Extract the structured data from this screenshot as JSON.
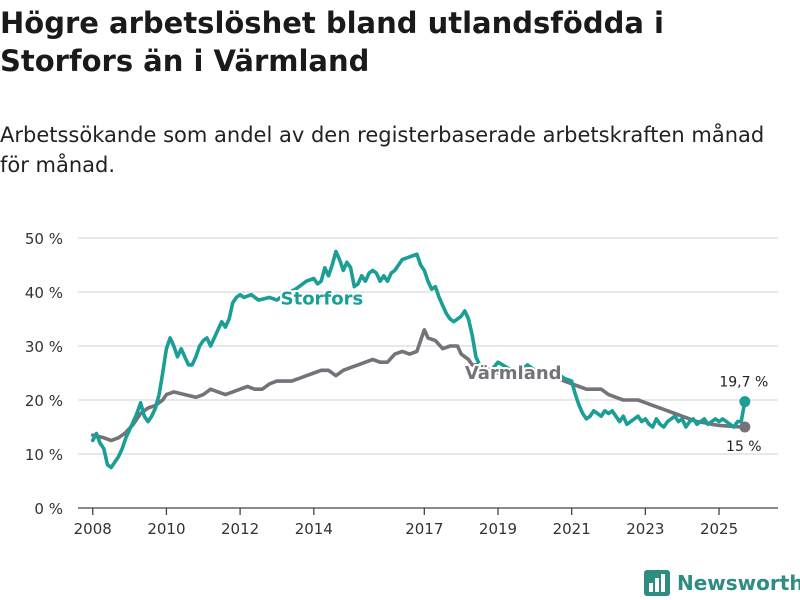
{
  "title": "Högre arbetslöshet bland utlandsfödda i Storfors än i Värmland",
  "subtitle": "Arbetssökande som andel av den registerbaserade arbetskraften månad för månad.",
  "logo": {
    "text": "Newsworthy",
    "icon": "bar-chart-icon"
  },
  "colors": {
    "storfors": "#1a9e95",
    "varmland": "#75727a",
    "grid": "#d9d9d9",
    "axis": "#444444",
    "brand": "#2e8c82"
  },
  "chart_data": {
    "type": "line",
    "title": "Högre arbetslöshet bland utlandsfödda i Storfors än i Värmland",
    "ylim": [
      0,
      50
    ],
    "xlim": [
      2007.6,
      2026.6
    ],
    "yticks": [
      0,
      10,
      20,
      30,
      40,
      50
    ],
    "ytick_labels": [
      "0 %",
      "10 %",
      "20 %",
      "30 %",
      "40 %",
      "50 %"
    ],
    "xticks": [
      2008,
      2010,
      2012,
      2014,
      2017,
      2019,
      2021,
      2023,
      2025
    ],
    "xtick_labels": [
      "2008",
      "2010",
      "2012",
      "2014",
      "2017",
      "2019",
      "2021",
      "2023",
      "2025"
    ],
    "series": [
      {
        "name": "Storfors",
        "label": "Storfors",
        "end_label": "19,7 %",
        "points": [
          [
            2008.0,
            12.5
          ],
          [
            2008.1,
            13.8
          ],
          [
            2008.2,
            12.0
          ],
          [
            2008.3,
            11.0
          ],
          [
            2008.4,
            8.0
          ],
          [
            2008.5,
            7.5
          ],
          [
            2008.6,
            8.5
          ],
          [
            2008.7,
            9.5
          ],
          [
            2008.8,
            11.0
          ],
          [
            2008.9,
            13.0
          ],
          [
            2009.0,
            14.5
          ],
          [
            2009.1,
            16.0
          ],
          [
            2009.2,
            17.5
          ],
          [
            2009.3,
            19.5
          ],
          [
            2009.4,
            17.0
          ],
          [
            2009.5,
            16.0
          ],
          [
            2009.6,
            17.0
          ],
          [
            2009.7,
            18.5
          ],
          [
            2009.8,
            21.0
          ],
          [
            2009.9,
            25.0
          ],
          [
            2010.0,
            29.5
          ],
          [
            2010.1,
            31.5
          ],
          [
            2010.2,
            30.0
          ],
          [
            2010.3,
            28.0
          ],
          [
            2010.4,
            29.5
          ],
          [
            2010.5,
            28.0
          ],
          [
            2010.6,
            26.5
          ],
          [
            2010.7,
            26.5
          ],
          [
            2010.8,
            28.0
          ],
          [
            2010.9,
            30.0
          ],
          [
            2011.0,
            31.0
          ],
          [
            2011.1,
            31.5
          ],
          [
            2011.2,
            30.0
          ],
          [
            2011.3,
            31.5
          ],
          [
            2011.4,
            33.0
          ],
          [
            2011.5,
            34.5
          ],
          [
            2011.6,
            33.5
          ],
          [
            2011.7,
            35.0
          ],
          [
            2011.8,
            38.0
          ],
          [
            2011.9,
            39.0
          ],
          [
            2012.0,
            39.5
          ],
          [
            2012.1,
            39.0
          ],
          [
            2012.3,
            39.5
          ],
          [
            2012.5,
            38.5
          ],
          [
            2012.8,
            39.0
          ],
          [
            2013.0,
            38.5
          ],
          [
            2013.2,
            39.5
          ],
          [
            2013.5,
            40.5
          ],
          [
            2013.8,
            42.0
          ],
          [
            2014.0,
            42.5
          ],
          [
            2014.1,
            41.5
          ],
          [
            2014.2,
            42.0
          ],
          [
            2014.3,
            44.5
          ],
          [
            2014.4,
            43.0
          ],
          [
            2014.5,
            45.0
          ],
          [
            2014.6,
            47.5
          ],
          [
            2014.7,
            46.0
          ],
          [
            2014.8,
            44.0
          ],
          [
            2014.9,
            45.5
          ],
          [
            2015.0,
            44.5
          ],
          [
            2015.1,
            41.0
          ],
          [
            2015.2,
            41.5
          ],
          [
            2015.3,
            43.0
          ],
          [
            2015.4,
            42.0
          ],
          [
            2015.5,
            43.5
          ],
          [
            2015.6,
            44.0
          ],
          [
            2015.7,
            43.5
          ],
          [
            2015.8,
            42.0
          ],
          [
            2015.9,
            43.0
          ],
          [
            2016.0,
            42.0
          ],
          [
            2016.1,
            43.5
          ],
          [
            2016.2,
            44.0
          ],
          [
            2016.4,
            46.0
          ],
          [
            2016.6,
            46.5
          ],
          [
            2016.8,
            47.0
          ],
          [
            2016.9,
            45.0
          ],
          [
            2017.0,
            44.0
          ],
          [
            2017.1,
            42.0
          ],
          [
            2017.2,
            40.5
          ],
          [
            2017.3,
            41.0
          ],
          [
            2017.4,
            39.0
          ],
          [
            2017.5,
            37.5
          ],
          [
            2017.6,
            36.0
          ],
          [
            2017.7,
            35.0
          ],
          [
            2017.8,
            34.5
          ],
          [
            2017.9,
            35.0
          ],
          [
            2018.0,
            35.5
          ],
          [
            2018.1,
            36.5
          ],
          [
            2018.2,
            35.0
          ],
          [
            2018.3,
            32.0
          ],
          [
            2018.4,
            28.0
          ],
          [
            2018.5,
            26.5
          ],
          [
            2018.6,
            25.5
          ],
          [
            2018.7,
            24.5
          ],
          [
            2019.0,
            27.0
          ],
          [
            2019.5,
            25.0
          ],
          [
            2019.8,
            26.5
          ],
          [
            2020.0,
            25.5
          ],
          [
            2020.3,
            24.0
          ],
          [
            2020.6,
            25.0
          ],
          [
            2020.8,
            24.0
          ],
          [
            2021.0,
            23.5
          ],
          [
            2021.1,
            21.0
          ],
          [
            2021.2,
            19.0
          ],
          [
            2021.3,
            17.5
          ],
          [
            2021.4,
            16.5
          ],
          [
            2021.5,
            17.0
          ],
          [
            2021.6,
            18.0
          ],
          [
            2021.7,
            17.5
          ],
          [
            2021.8,
            17.0
          ],
          [
            2021.9,
            18.0
          ],
          [
            2022.0,
            17.5
          ],
          [
            2022.1,
            18.0
          ],
          [
            2022.2,
            17.0
          ],
          [
            2022.3,
            16.0
          ],
          [
            2022.4,
            17.0
          ],
          [
            2022.5,
            15.5
          ],
          [
            2022.6,
            16.0
          ],
          [
            2022.7,
            16.5
          ],
          [
            2022.8,
            17.0
          ],
          [
            2022.9,
            16.0
          ],
          [
            2023.0,
            16.5
          ],
          [
            2023.1,
            15.5
          ],
          [
            2023.2,
            15.0
          ],
          [
            2023.3,
            16.5
          ],
          [
            2023.4,
            15.5
          ],
          [
            2023.5,
            15.0
          ],
          [
            2023.6,
            16.0
          ],
          [
            2023.7,
            16.5
          ],
          [
            2023.8,
            17.0
          ],
          [
            2023.9,
            16.0
          ],
          [
            2024.0,
            16.5
          ],
          [
            2024.1,
            15.0
          ],
          [
            2024.2,
            16.0
          ],
          [
            2024.3,
            16.5
          ],
          [
            2024.4,
            15.5
          ],
          [
            2024.5,
            16.0
          ],
          [
            2024.6,
            16.5
          ],
          [
            2024.7,
            15.5
          ],
          [
            2024.8,
            16.0
          ],
          [
            2024.9,
            16.5
          ],
          [
            2025.0,
            16.0
          ],
          [
            2025.1,
            16.5
          ],
          [
            2025.2,
            16.0
          ],
          [
            2025.3,
            15.5
          ],
          [
            2025.4,
            15.0
          ],
          [
            2025.5,
            16.0
          ],
          [
            2025.6,
            16.0
          ],
          [
            2025.7,
            19.7
          ]
        ]
      },
      {
        "name": "Värmland",
        "label": "Värmland",
        "end_label": "15 %",
        "points": [
          [
            2008.0,
            13.5
          ],
          [
            2008.3,
            13.0
          ],
          [
            2008.5,
            12.5
          ],
          [
            2008.7,
            13.0
          ],
          [
            2008.9,
            14.0
          ],
          [
            2009.1,
            15.5
          ],
          [
            2009.3,
            17.5
          ],
          [
            2009.5,
            18.5
          ],
          [
            2009.7,
            19.0
          ],
          [
            2009.9,
            20.0
          ],
          [
            2010.0,
            21.0
          ],
          [
            2010.2,
            21.5
          ],
          [
            2010.5,
            21.0
          ],
          [
            2010.8,
            20.5
          ],
          [
            2011.0,
            21.0
          ],
          [
            2011.2,
            22.0
          ],
          [
            2011.4,
            21.5
          ],
          [
            2011.6,
            21.0
          ],
          [
            2011.8,
            21.5
          ],
          [
            2012.0,
            22.0
          ],
          [
            2012.2,
            22.5
          ],
          [
            2012.4,
            22.0
          ],
          [
            2012.6,
            22.0
          ],
          [
            2012.8,
            23.0
          ],
          [
            2013.0,
            23.5
          ],
          [
            2013.2,
            23.5
          ],
          [
            2013.4,
            23.5
          ],
          [
            2013.6,
            24.0
          ],
          [
            2013.8,
            24.5
          ],
          [
            2014.0,
            25.0
          ],
          [
            2014.2,
            25.5
          ],
          [
            2014.4,
            25.5
          ],
          [
            2014.6,
            24.5
          ],
          [
            2014.7,
            25.0
          ],
          [
            2014.8,
            25.5
          ],
          [
            2015.0,
            26.0
          ],
          [
            2015.2,
            26.5
          ],
          [
            2015.4,
            27.0
          ],
          [
            2015.6,
            27.5
          ],
          [
            2015.8,
            27.0
          ],
          [
            2016.0,
            27.0
          ],
          [
            2016.2,
            28.5
          ],
          [
            2016.4,
            29.0
          ],
          [
            2016.6,
            28.5
          ],
          [
            2016.8,
            29.0
          ],
          [
            2016.9,
            31.0
          ],
          [
            2017.0,
            33.0
          ],
          [
            2017.1,
            31.5
          ],
          [
            2017.3,
            31.0
          ],
          [
            2017.5,
            29.5
          ],
          [
            2017.7,
            30.0
          ],
          [
            2017.9,
            30.0
          ],
          [
            2018.0,
            28.5
          ],
          [
            2018.2,
            27.5
          ],
          [
            2018.3,
            26.5
          ],
          [
            2018.5,
            26.5
          ],
          [
            2019.0,
            25.0
          ],
          [
            2019.5,
            24.5
          ],
          [
            2020.0,
            24.5
          ],
          [
            2020.5,
            24.5
          ],
          [
            2020.8,
            23.5
          ],
          [
            2021.0,
            23.0
          ],
          [
            2021.2,
            22.5
          ],
          [
            2021.4,
            22.0
          ],
          [
            2021.6,
            22.0
          ],
          [
            2021.8,
            22.0
          ],
          [
            2022.0,
            21.0
          ],
          [
            2022.2,
            20.5
          ],
          [
            2022.4,
            20.0
          ],
          [
            2022.6,
            20.0
          ],
          [
            2022.8,
            20.0
          ],
          [
            2023.0,
            19.5
          ],
          [
            2023.2,
            19.0
          ],
          [
            2023.4,
            18.5
          ],
          [
            2023.6,
            18.0
          ],
          [
            2023.8,
            17.5
          ],
          [
            2024.0,
            17.0
          ],
          [
            2024.2,
            16.5
          ],
          [
            2024.4,
            16.0
          ],
          [
            2024.6,
            15.8
          ],
          [
            2024.8,
            15.5
          ],
          [
            2025.0,
            15.3
          ],
          [
            2025.2,
            15.2
          ],
          [
            2025.4,
            15.1
          ],
          [
            2025.6,
            15.0
          ],
          [
            2025.7,
            15.0
          ]
        ]
      }
    ]
  }
}
